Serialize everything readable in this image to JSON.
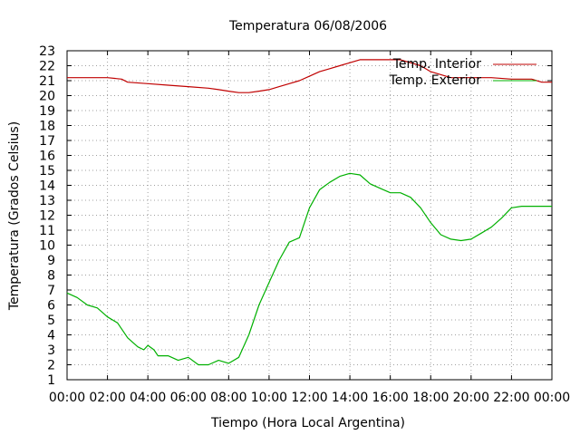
{
  "chart_data": {
    "type": "line",
    "title": "Temperatura 06/08/2006",
    "xlabel": "Tiempo (Hora Local Argentina)",
    "ylabel": "Temperatura (Grados Celsius)",
    "xlim": [
      0,
      24
    ],
    "ylim": [
      1,
      23
    ],
    "x_ticks": [
      "00:00",
      "02:00",
      "04:00",
      "06:00",
      "08:00",
      "10:00",
      "12:00",
      "14:00",
      "16:00",
      "18:00",
      "20:00",
      "22:00",
      "00:00"
    ],
    "y_ticks": [
      1,
      2,
      3,
      4,
      5,
      6,
      7,
      8,
      9,
      10,
      11,
      12,
      13,
      14,
      15,
      16,
      17,
      18,
      19,
      20,
      21,
      22,
      23
    ],
    "grid": true,
    "legend_position": "top-right",
    "colors": {
      "Temp. Interior": "#c00000",
      "Temp. Exterior": "#00b000"
    },
    "series": [
      {
        "name": "Temp. Interior",
        "x": [
          0,
          1,
          2,
          2.7,
          3,
          4,
          5,
          6,
          7,
          7.5,
          8,
          8.5,
          9,
          9.5,
          10,
          10.5,
          11,
          11.5,
          12,
          12.5,
          13,
          13.5,
          14,
          14.5,
          15,
          15.5,
          16,
          16.5,
          17,
          17.5,
          18,
          19,
          20,
          21,
          22,
          23,
          23.5,
          24
        ],
        "values": [
          21.2,
          21.2,
          21.2,
          21.1,
          20.9,
          20.8,
          20.7,
          20.6,
          20.5,
          20.4,
          20.3,
          20.2,
          20.2,
          20.3,
          20.4,
          20.6,
          20.8,
          21.0,
          21.3,
          21.6,
          21.8,
          22.0,
          22.2,
          22.4,
          22.4,
          22.4,
          22.4,
          22.4,
          22.2,
          22.0,
          21.6,
          21.2,
          21.2,
          21.2,
          21.1,
          21.1,
          20.9,
          20.9
        ]
      },
      {
        "name": "Temp. Exterior",
        "x": [
          0,
          0.5,
          1,
          1.5,
          2,
          2.5,
          3,
          3.5,
          3.8,
          4,
          4.3,
          4.5,
          5,
          5.5,
          6,
          6.5,
          7,
          7.5,
          8,
          8.5,
          9,
          9.5,
          10,
          10.5,
          11,
          11.5,
          12,
          12.5,
          13,
          13.5,
          14,
          14.5,
          15,
          15.5,
          16,
          16.5,
          17,
          17.5,
          18,
          18.5,
          19,
          19.5,
          20,
          20.5,
          21,
          21.5,
          22,
          22.5,
          23,
          24
        ],
        "values": [
          6.8,
          6.5,
          6.0,
          5.8,
          5.2,
          4.8,
          3.8,
          3.2,
          3.0,
          3.3,
          3.0,
          2.6,
          2.6,
          2.3,
          2.5,
          2.0,
          2.0,
          2.3,
          2.1,
          2.5,
          4.0,
          6.0,
          7.5,
          9.0,
          10.2,
          10.5,
          12.5,
          13.7,
          14.2,
          14.6,
          14.8,
          14.7,
          14.1,
          13.8,
          13.5,
          13.5,
          13.2,
          12.5,
          11.5,
          10.7,
          10.4,
          10.3,
          10.4,
          10.8,
          11.2,
          11.8,
          12.5,
          12.6,
          12.6,
          12.6
        ]
      }
    ]
  }
}
